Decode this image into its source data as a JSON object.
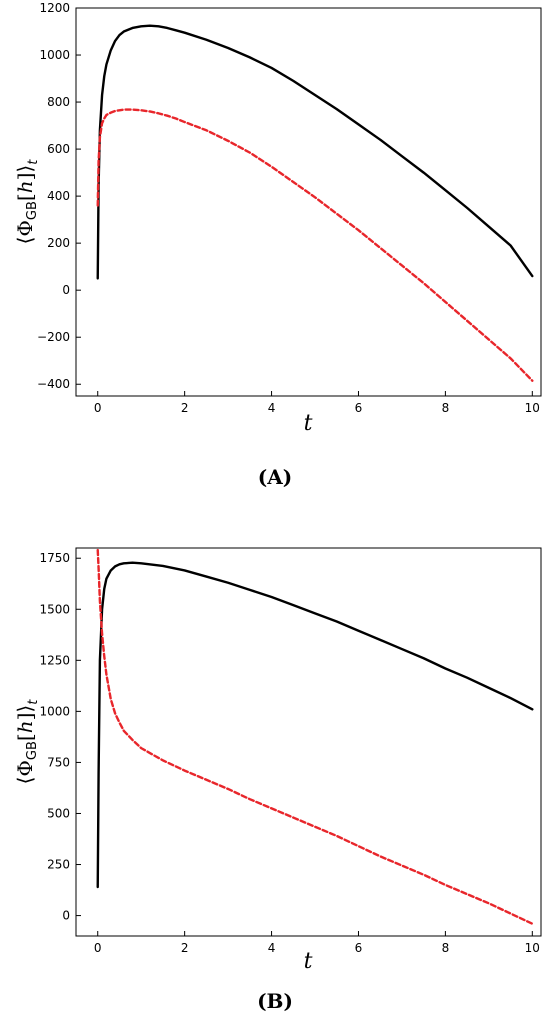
{
  "chart_data": [
    {
      "type": "line",
      "panel_label": "(A)",
      "xlabel": "t",
      "ylabel": "⟨Φ_GB[h]⟩_t",
      "xlim": [
        -0.5,
        10.2
      ],
      "ylim": [
        -450,
        1200
      ],
      "xticks": [
        0,
        2,
        4,
        6,
        8,
        10
      ],
      "yticks": [
        -400,
        -200,
        0,
        200,
        400,
        600,
        800,
        1000,
        1200
      ],
      "grid": false,
      "legend": "none",
      "series": [
        {
          "color": "#000000",
          "style": "solid",
          "x": [
            0,
            0.02,
            0.05,
            0.1,
            0.15,
            0.2,
            0.3,
            0.4,
            0.5,
            0.6,
            0.8,
            1.0,
            1.2,
            1.4,
            1.6,
            1.8,
            2,
            2.5,
            3,
            3.5,
            4,
            4.5,
            5,
            5.5,
            6,
            6.5,
            7,
            7.5,
            8,
            8.5,
            9,
            9.5,
            10
          ],
          "y": [
            50,
            450,
            680,
            830,
            910,
            960,
            1020,
            1060,
            1085,
            1100,
            1115,
            1122,
            1125,
            1122,
            1115,
            1105,
            1095,
            1065,
            1030,
            990,
            945,
            890,
            830,
            770,
            705,
            640,
            570,
            500,
            425,
            350,
            270,
            190,
            60
          ]
        },
        {
          "color": "#e8262b",
          "style": "dashed",
          "x": [
            0,
            0.02,
            0.05,
            0.1,
            0.15,
            0.2,
            0.3,
            0.4,
            0.5,
            0.6,
            0.8,
            1.0,
            1.2,
            1.4,
            1.6,
            1.8,
            2,
            2.5,
            3,
            3.5,
            4,
            4.5,
            5,
            5.5,
            6,
            6.5,
            7,
            7.5,
            8,
            8.5,
            9,
            9.5,
            10
          ],
          "y": [
            360,
            550,
            650,
            710,
            730,
            745,
            755,
            762,
            765,
            768,
            768,
            765,
            760,
            752,
            742,
            730,
            715,
            680,
            635,
            585,
            525,
            460,
            395,
            325,
            255,
            180,
            105,
            30,
            -50,
            -130,
            -210,
            -290,
            -385
          ]
        }
      ]
    },
    {
      "type": "line",
      "panel_label": "(B)",
      "xlabel": "t",
      "ylabel": "⟨Φ_GB[h]⟩_t",
      "xlim": [
        -0.5,
        10.2
      ],
      "ylim": [
        -100,
        1800
      ],
      "xticks": [
        0,
        2,
        4,
        6,
        8,
        10
      ],
      "yticks": [
        0,
        250,
        500,
        750,
        1000,
        1250,
        1500,
        1750
      ],
      "grid": false,
      "legend": "none",
      "series": [
        {
          "color": "#000000",
          "style": "solid",
          "x": [
            0,
            0.02,
            0.05,
            0.1,
            0.15,
            0.2,
            0.3,
            0.4,
            0.5,
            0.6,
            0.8,
            1.0,
            1.5,
            2,
            2.5,
            3,
            3.5,
            4,
            4.5,
            5,
            5.5,
            6,
            6.5,
            7,
            7.5,
            8,
            8.5,
            9,
            9.5,
            10
          ],
          "y": [
            140,
            700,
            1250,
            1500,
            1600,
            1650,
            1690,
            1710,
            1720,
            1725,
            1728,
            1725,
            1712,
            1690,
            1660,
            1630,
            1595,
            1560,
            1520,
            1480,
            1440,
            1395,
            1350,
            1305,
            1260,
            1210,
            1165,
            1115,
            1065,
            1010
          ]
        },
        {
          "color": "#e8262b",
          "style": "dashed",
          "x": [
            0,
            0.02,
            0.05,
            0.1,
            0.15,
            0.2,
            0.3,
            0.4,
            0.5,
            0.6,
            0.8,
            1.0,
            1.5,
            2,
            2.5,
            3,
            3.5,
            4,
            4.5,
            5,
            5.5,
            6,
            6.5,
            7,
            7.5,
            8,
            8.5,
            9,
            9.5,
            10
          ],
          "y": [
            1790,
            1700,
            1540,
            1380,
            1270,
            1180,
            1060,
            990,
            945,
            905,
            860,
            820,
            760,
            710,
            665,
            620,
            570,
            525,
            480,
            435,
            390,
            340,
            290,
            245,
            200,
            150,
            105,
            60,
            10,
            -40
          ]
        }
      ]
    }
  ]
}
